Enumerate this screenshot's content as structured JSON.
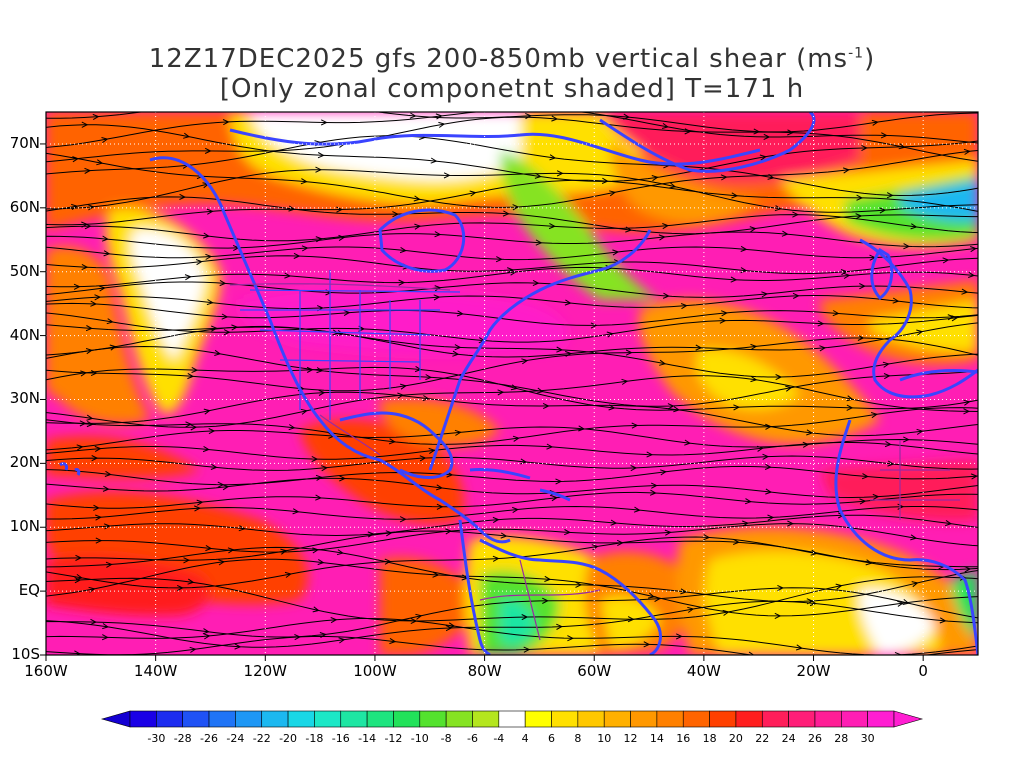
{
  "title": {
    "line1_main": "12Z17DEC2025 gfs 200-850mb vertical shear (ms",
    "line1_sup": "-1",
    "line1_end": ")",
    "line2": "[Only zonal componetnt shaded] T=171 h"
  },
  "map": {
    "lat_labels": [
      {
        "label": "70N",
        "lat": 70
      },
      {
        "label": "60N",
        "lat": 60
      },
      {
        "label": "50N",
        "lat": 50
      },
      {
        "label": "40N",
        "lat": 40
      },
      {
        "label": "30N",
        "lat": 30
      },
      {
        "label": "20N",
        "lat": 20
      },
      {
        "label": "10N",
        "lat": 10
      },
      {
        "label": "EQ",
        "lat": 0
      },
      {
        "label": "10S",
        "lat": -10
      }
    ],
    "lon_labels": [
      {
        "label": "160W",
        "lon": -160
      },
      {
        "label": "140W",
        "lon": -140
      },
      {
        "label": "120W",
        "lon": -120
      },
      {
        "label": "100W",
        "lon": -100
      },
      {
        "label": "80W",
        "lon": -80
      },
      {
        "label": "60W",
        "lon": -60
      },
      {
        "label": "40W",
        "lon": -40
      },
      {
        "label": "20W",
        "lon": -20
      },
      {
        "label": "0",
        "lon": 0
      }
    ],
    "lat_range": [
      -10,
      75
    ],
    "lon_range": [
      -160,
      10
    ],
    "field": "zonal component of 200-850mb vertical shear",
    "overlays": [
      "streamlines",
      "coastlines",
      "country borders",
      "state borders",
      "dotted lat/lon grid"
    ],
    "colors": {
      "coast": "#3a44ff",
      "border": "#9a2aa0",
      "stream": "#000000",
      "grid": "#ffffff"
    }
  },
  "colorbar": {
    "labels": [
      "-30",
      "-28",
      "-26",
      "-24",
      "-22",
      "-20",
      "-18",
      "-16",
      "-14",
      "-12",
      "-10",
      "-8",
      "-6",
      "-4",
      "4",
      "6",
      "8",
      "10",
      "12",
      "14",
      "16",
      "18",
      "20",
      "22",
      "24",
      "26",
      "28",
      "30"
    ],
    "colors": [
      "#1a00e6",
      "#1d2cf0",
      "#1f52f5",
      "#1f74f6",
      "#1e97f5",
      "#1cb8f0",
      "#19d7e6",
      "#1ce8c7",
      "#1ee6a3",
      "#1ee47f",
      "#22e25a",
      "#54e22e",
      "#86e323",
      "#b4e61e",
      "#ffffff",
      "#ffff00",
      "#ffe000",
      "#ffc800",
      "#ffb000",
      "#ff9800",
      "#ff8000",
      "#ff6400",
      "#ff4000",
      "#ff1e1e",
      "#ff1e5a",
      "#ff1e78",
      "#ff1e96",
      "#ff1eb4",
      "#ff1ed2"
    ],
    "end_colors": {
      "low": "#1400d2",
      "high": "#ff1ed2"
    }
  }
}
